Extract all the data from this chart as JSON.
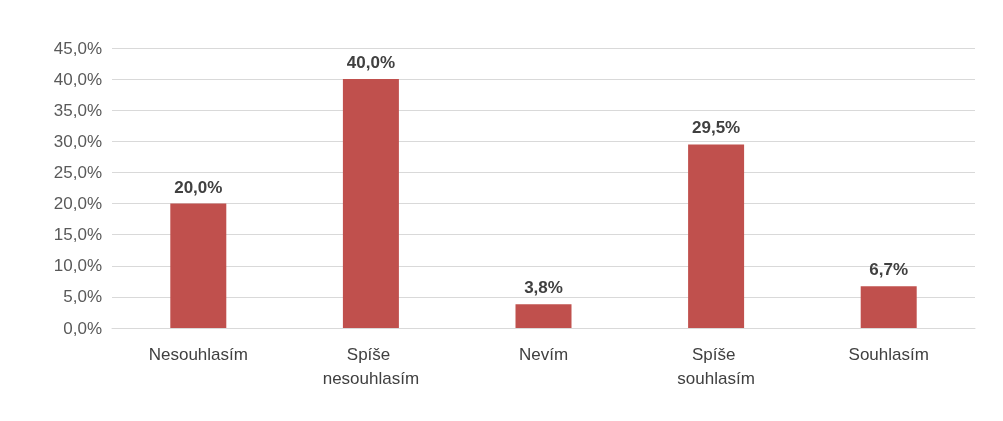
{
  "chart_data": {
    "type": "bar",
    "categories": [
      "Nesouhlasím",
      "Spíše nesouhlasím",
      "Nevím",
      "Spíše souhlasím",
      "Souhlasím"
    ],
    "values": [
      20.0,
      40.0,
      3.8,
      29.5,
      6.7
    ],
    "value_labels": [
      "20,0%",
      "40,0%",
      "3,8%",
      "29,5%",
      "6,7%"
    ],
    "color": "#c0504d",
    "ylim": [
      0,
      45
    ],
    "yticks": [
      {
        "value": 0,
        "label": "0,0%"
      },
      {
        "value": 5,
        "label": "5,0%"
      },
      {
        "value": 10,
        "label": "10,0%"
      },
      {
        "value": 15,
        "label": "15,0%"
      },
      {
        "value": 20,
        "label": "20,0%"
      },
      {
        "value": 25,
        "label": "25,0%"
      },
      {
        "value": 30,
        "label": "30,0%"
      },
      {
        "value": 35,
        "label": "35,0%"
      },
      {
        "value": 40,
        "label": "40,0%"
      },
      {
        "value": 45,
        "label": "45,0%"
      }
    ],
    "grid": "y"
  }
}
